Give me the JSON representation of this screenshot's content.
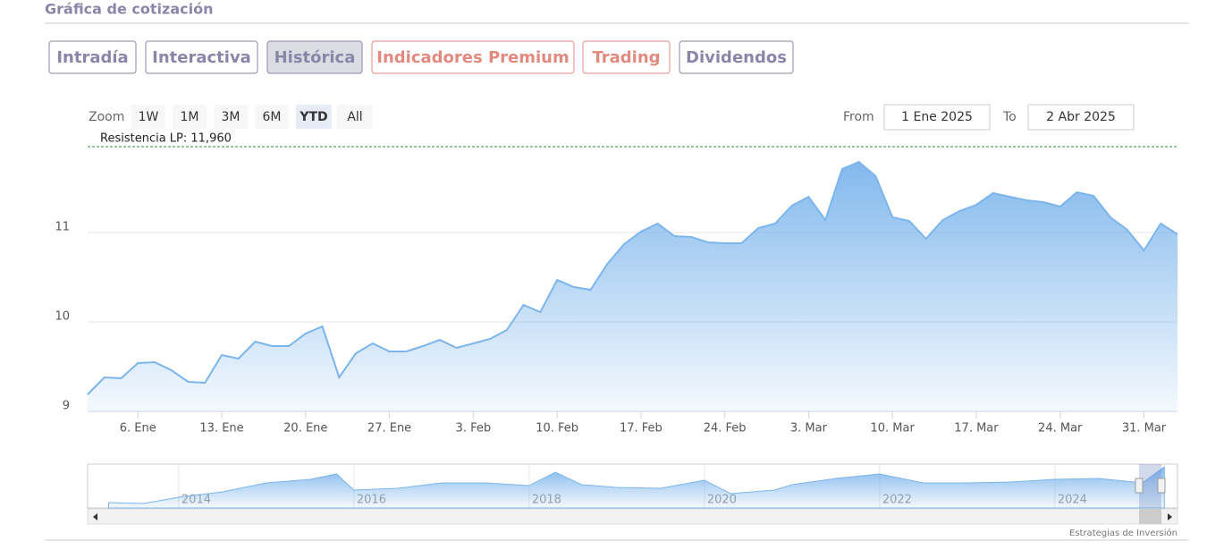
{
  "header": {
    "title": "Gráfica de cotización"
  },
  "tabs": [
    "Intradía",
    "Interactiva",
    "Histórica",
    "Indicadores Premium",
    "Trading",
    "Dividendos"
  ],
  "active_tab": 2,
  "zoom": {
    "label": "Zoom",
    "buttons": [
      "1W",
      "1M",
      "3M",
      "6M",
      "YTD",
      "All"
    ],
    "active": 4
  },
  "range": {
    "from_label": "From",
    "from": "1 Ene 2025",
    "to_label": "To",
    "to": "2 Abr 2025"
  },
  "chart_data": {
    "type": "area",
    "color": "#7cb5ec",
    "categories": [
      null,
      null,
      null,
      "6. Ene",
      null,
      null,
      null,
      null,
      "13. Ene",
      null,
      null,
      null,
      null,
      "20. Ene",
      null,
      null,
      null,
      null,
      "27. Ene",
      null,
      null,
      null,
      null,
      "3. Feb",
      null,
      null,
      null,
      null,
      "10. Feb",
      null,
      null,
      null,
      null,
      "17. Feb",
      null,
      null,
      null,
      null,
      "24. Feb",
      null,
      null,
      null,
      null,
      "3. Mar",
      null,
      null,
      null,
      null,
      "10. Mar",
      null,
      null,
      null,
      null,
      "17. Mar",
      null,
      null,
      null,
      null,
      "24. Mar",
      null,
      null,
      null,
      null,
      "31. Mar",
      null,
      null
    ],
    "values": [
      9.19,
      9.38,
      9.37,
      9.54,
      9.55,
      9.46,
      9.33,
      9.32,
      9.63,
      9.59,
      9.78,
      9.73,
      9.73,
      9.87,
      9.95,
      9.38,
      9.65,
      9.76,
      9.67,
      9.67,
      9.73,
      9.8,
      9.71,
      9.76,
      9.81,
      9.91,
      10.19,
      10.11,
      10.47,
      10.39,
      10.36,
      10.65,
      10.87,
      11.01,
      11.1,
      10.96,
      10.95,
      10.89,
      10.88,
      10.88,
      11.05,
      11.1,
      11.3,
      11.4,
      11.14,
      11.71,
      11.79,
      11.63,
      11.17,
      11.13,
      10.93,
      11.14,
      11.24,
      11.31,
      11.44,
      11.4,
      11.36,
      11.34,
      11.29,
      11.45,
      11.41,
      11.17,
      11.03,
      10.8,
      11.1,
      10.98
    ],
    "ylim": [
      9,
      12
    ],
    "yticks": [
      9,
      10,
      11
    ],
    "grid": true,
    "resistance": {
      "value": 11.96,
      "label": "Resistencia LP: 11,960",
      "color": "#2e8b3a"
    }
  },
  "navigator": {
    "x": [
      2013.2,
      2013.6,
      2014.0,
      2014.5,
      2015.0,
      2015.5,
      2015.8,
      2016.0,
      2016.5,
      2017.0,
      2017.5,
      2018.0,
      2018.3,
      2018.6,
      2019.0,
      2019.5,
      2020.0,
      2020.3,
      2020.8,
      2021.0,
      2021.5,
      2022.0,
      2022.5,
      2023.0,
      2023.5,
      2024.0,
      2024.5,
      2025.0,
      2025.25
    ],
    "values": [
      5.13,
      4.94,
      6.25,
      7.38,
      9.25,
      10,
      11.13,
      7.75,
      8.13,
      9.25,
      9.25,
      8.69,
      11.5,
      8.88,
      8.31,
      8.13,
      9.81,
      7,
      7.75,
      8.88,
      10.19,
      11.13,
      9.25,
      9.25,
      9.44,
      10,
      10.19,
      9.25,
      12.63
    ],
    "xlim": [
      2012.96,
      2025.4
    ],
    "ylim": [
      4,
      13
    ],
    "xticks": [
      2014,
      2016,
      2018,
      2020,
      2022,
      2024
    ]
  },
  "credits": "Estrategias de Inversión"
}
